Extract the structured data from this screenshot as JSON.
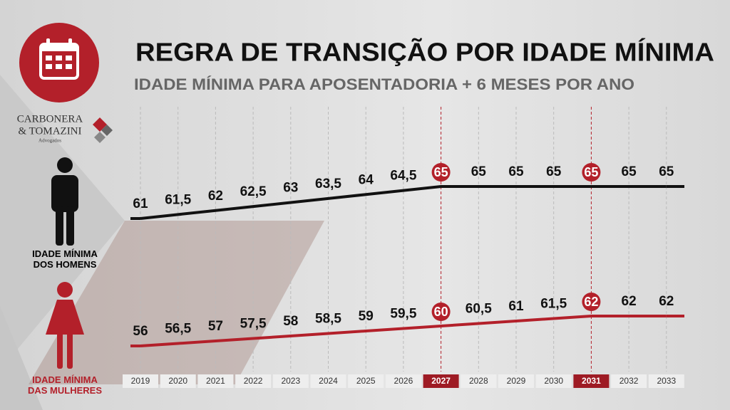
{
  "chart_data": {
    "type": "line",
    "title": "REGRA DE TRANSIÇÃO POR IDADE MÍNIMA",
    "subtitle": "IDADE MÍNIMA PARA APOSENTADORIA + 6 MESES POR ANO",
    "categories": [
      "2019",
      "2020",
      "2021",
      "2022",
      "2023",
      "2024",
      "2025",
      "2026",
      "2027",
      "2028",
      "2029",
      "2030",
      "2031",
      "2032",
      "2033"
    ],
    "highlight": [
      8,
      12
    ],
    "series": [
      {
        "name": "IDADE MÍNIMA DOS HOMENS",
        "color": "#111111",
        "values": [
          61,
          61.5,
          62,
          62.5,
          63,
          63.5,
          64,
          64.5,
          65,
          65,
          65,
          65,
          65,
          65,
          65
        ],
        "value_labels": [
          "61",
          "61,5",
          "62",
          "62,5",
          "63",
          "63,5",
          "64",
          "64,5",
          "65",
          "65",
          "65",
          "65",
          "65",
          "65",
          "65"
        ]
      },
      {
        "name": "IDADE MÍNIMA DAS MULHERES",
        "color": "#b3202a",
        "values": [
          56,
          56.5,
          57,
          57.5,
          58,
          58.5,
          59,
          59.5,
          60,
          60.5,
          61,
          61.5,
          62,
          62,
          62
        ],
        "value_labels": [
          "56",
          "56,5",
          "57",
          "57,5",
          "58",
          "58,5",
          "59",
          "59,5",
          "60",
          "60,5",
          "61",
          "61,5",
          "62",
          "62",
          "62"
        ]
      }
    ]
  },
  "logo": {
    "name_line1": "CARBONERA",
    "name_line2": "& TOMAZINI",
    "tagline": "Advogados"
  }
}
